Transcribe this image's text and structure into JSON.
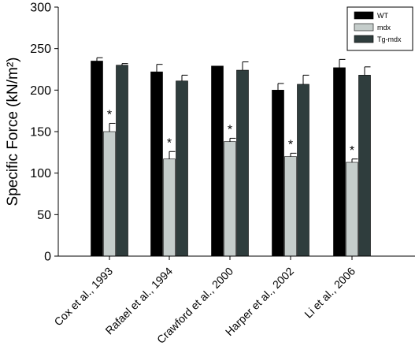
{
  "chart_data": {
    "type": "bar",
    "title": "",
    "xlabel": "",
    "ylabel": "Specific Force (kN/m²)",
    "ylim": [
      0,
      300
    ],
    "yticks": [
      0,
      50,
      100,
      150,
      200,
      250,
      300
    ],
    "grid": false,
    "legend_position": "top-right",
    "categories": [
      "Cox et al., 1993",
      "Rafael et al., 1994",
      "Crawford et al., 2000",
      "Harper et al., 2002",
      "Li et al., 2006"
    ],
    "series": [
      {
        "name": "WT",
        "color": "#000000",
        "values": [
          235,
          222,
          229,
          200,
          227
        ],
        "errors": [
          4,
          9,
          0,
          8,
          10
        ]
      },
      {
        "name": "mdx",
        "color": "#c5cdcb",
        "values": [
          150,
          117,
          138,
          120,
          113
        ],
        "errors": [
          10,
          9,
          4,
          4,
          4
        ]
      },
      {
        "name": "Tg-mdx",
        "color": "#2f3d3d",
        "values": [
          230,
          211,
          224,
          207,
          218
        ],
        "errors": [
          2,
          7,
          10,
          11,
          10
        ]
      }
    ],
    "annotations": [
      {
        "text": "*",
        "category": 0,
        "series": "mdx"
      },
      {
        "text": "*",
        "category": 1,
        "series": "mdx"
      },
      {
        "text": "*",
        "category": 2,
        "series": "mdx"
      },
      {
        "text": "*",
        "category": 3,
        "series": "mdx"
      },
      {
        "text": "*",
        "category": 4,
        "series": "mdx"
      }
    ]
  }
}
